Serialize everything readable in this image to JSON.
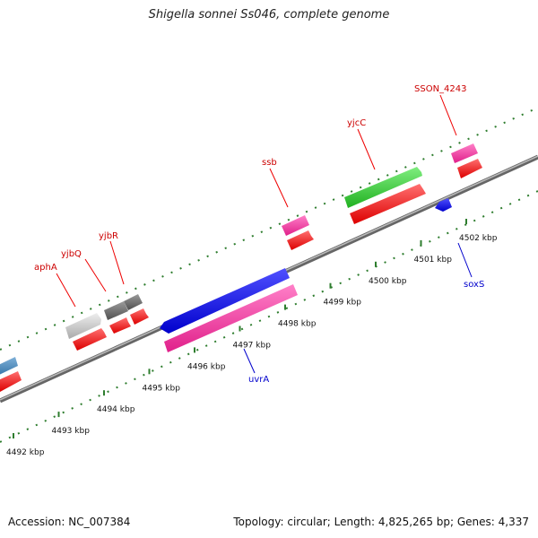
{
  "title": "Shigella sonnei Ss046, complete genome",
  "footer": {
    "accession": "Accession: NC_007384",
    "topology": "Topology: circular; Length: 4,825,265 bp; Genes: 4,337"
  },
  "colors": {
    "forward_label": "#cc0000",
    "reverse_label": "#0000cc",
    "tick": "#2e7d2e",
    "backbone": "#888888"
  },
  "ruler": {
    "unit": "kbp",
    "labels": [
      "4492 kbp",
      "4493 kbp",
      "4494 kbp",
      "4495 kbp",
      "4496 kbp",
      "4497 kbp",
      "4498 kbp",
      "4499 kbp",
      "4500 kbp",
      "4501 kbp",
      "4502 kbp"
    ]
  },
  "features": [
    {
      "name": "aphA",
      "strand": "forward",
      "color": "#c8c8c8"
    },
    {
      "name": "yjbQ",
      "strand": "forward",
      "color": "#707070"
    },
    {
      "name": "yjbR",
      "strand": "forward",
      "color": "#707070"
    },
    {
      "name": "ssb",
      "strand": "forward",
      "color": "#ff3399"
    },
    {
      "name": "yjcC",
      "strand": "forward",
      "color": "#33cc33"
    },
    {
      "name": "SSON_4243",
      "strand": "forward",
      "color": "#ff3399"
    },
    {
      "name": "uvrA",
      "strand": "reverse",
      "color": "#0000ee"
    },
    {
      "name": "soxS",
      "strand": "reverse",
      "color": "#0000ee"
    }
  ]
}
